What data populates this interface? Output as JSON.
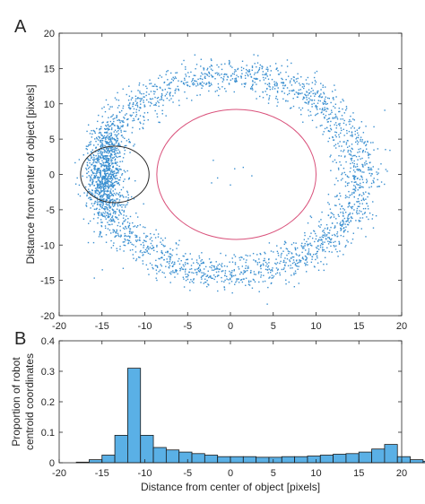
{
  "figure": {
    "panel_a_label": "A",
    "panel_b_label": "B"
  },
  "chart_data": [
    {
      "type": "scatter",
      "panel": "A",
      "title": "",
      "xlabel": "",
      "ylabel": "Distance from center of object [pixels]",
      "xlim": [
        -20,
        20
      ],
      "ylim": [
        -20,
        20
      ],
      "xticks": [
        -20,
        -15,
        -10,
        -5,
        0,
        5,
        10,
        15,
        20
      ],
      "yticks": [
        -20,
        -15,
        -10,
        -5,
        0,
        5,
        10,
        15,
        20
      ],
      "grid": false,
      "box": true,
      "colors": {
        "points": "#3a8fd0",
        "black_circle": "#2b2b2b",
        "red_circle": "#d9507a"
      },
      "point_cloud": {
        "description_of_distribution": "dense elliptical ring of points",
        "ring_center": [
          0,
          0
        ],
        "ring_radii": [
          15.2,
          14.0
        ],
        "ring_spread": 1.3,
        "dense_cluster_center": [
          -14.5,
          0
        ],
        "dense_cluster_spread": [
          0.9,
          3.5
        ],
        "approx_point_count": 3200,
        "sparse_inner_points": [
          [
            -2,
            2
          ],
          [
            -1.5,
            -0.5
          ],
          [
            1.5,
            1
          ],
          [
            0,
            -1.5
          ],
          [
            2.5,
            -0.2
          ],
          [
            -2.2,
            -1.2
          ],
          [
            0.5,
            0.8
          ]
        ]
      },
      "circles": [
        {
          "name": "black",
          "center": [
            -13.5,
            0
          ],
          "radius": 4.0,
          "color": "#2b2b2b"
        },
        {
          "name": "red",
          "center": [
            0.7,
            0
          ],
          "rx": 9.3,
          "ry": 9.2,
          "color": "#d9507a"
        }
      ]
    },
    {
      "type": "bar",
      "panel": "B",
      "title": "",
      "xlabel": "Distance from center of object [pixels]",
      "ylabel": "Proportion of robot centroid coordinates",
      "xlim": [
        -20,
        20
      ],
      "ylim": [
        0,
        0.4
      ],
      "xticks": [
        -20,
        -15,
        -10,
        -5,
        0,
        5,
        10,
        15,
        20
      ],
      "yticks": [
        0,
        0.1,
        0.2,
        0.3,
        0.4
      ],
      "bar_color": "#5ab0e6",
      "bar_edge": "#1a1a1a",
      "bin_width": 1.5,
      "bin_edges_start": -18,
      "values": [
        0.002,
        0.01,
        0.025,
        0.09,
        0.31,
        0.09,
        0.05,
        0.042,
        0.035,
        0.03,
        0.025,
        0.02,
        0.02,
        0.02,
        0.018,
        0.018,
        0.02,
        0.02,
        0.022,
        0.025,
        0.028,
        0.03,
        0.035,
        0.045,
        0.06,
        0.02,
        0.01,
        0.005
      ]
    }
  ]
}
